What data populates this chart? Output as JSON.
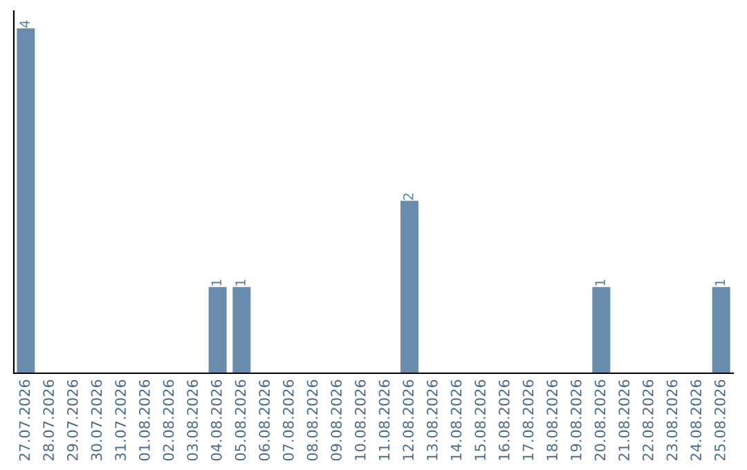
{
  "chart_data": {
    "type": "bar",
    "categories": [
      "27.07.2026",
      "28.07.2026",
      "29.07.2026",
      "30.07.2026",
      "31.07.2026",
      "01.08.2026",
      "02.08.2026",
      "03.08.2026",
      "04.08.2026",
      "05.08.2026",
      "06.08.2026",
      "07.08.2026",
      "08.08.2026",
      "09.08.2026",
      "10.08.2026",
      "11.08.2026",
      "12.08.2026",
      "13.08.2026",
      "14.08.2026",
      "15.08.2026",
      "16.08.2026",
      "17.08.2026",
      "18.08.2026",
      "19.08.2026",
      "20.08.2026",
      "21.08.2026",
      "22.08.2026",
      "23.08.2026",
      "24.08.2026",
      "25.08.2026"
    ],
    "values": [
      4,
      0,
      0,
      0,
      0,
      0,
      0,
      0,
      1,
      1,
      0,
      0,
      0,
      0,
      0,
      0,
      2,
      0,
      0,
      0,
      0,
      0,
      0,
      0,
      1,
      0,
      0,
      0,
      0,
      1
    ],
    "value_labels": [
      "4",
      null,
      null,
      null,
      null,
      null,
      null,
      null,
      "1",
      "1",
      null,
      null,
      null,
      null,
      null,
      null,
      "2",
      null,
      null,
      null,
      null,
      null,
      null,
      null,
      "1",
      null,
      null,
      null,
      null,
      "1"
    ],
    "color": "#6a8cad",
    "ylim": [
      0,
      4.2
    ],
    "tick_labels": "x",
    "grid": false
  }
}
